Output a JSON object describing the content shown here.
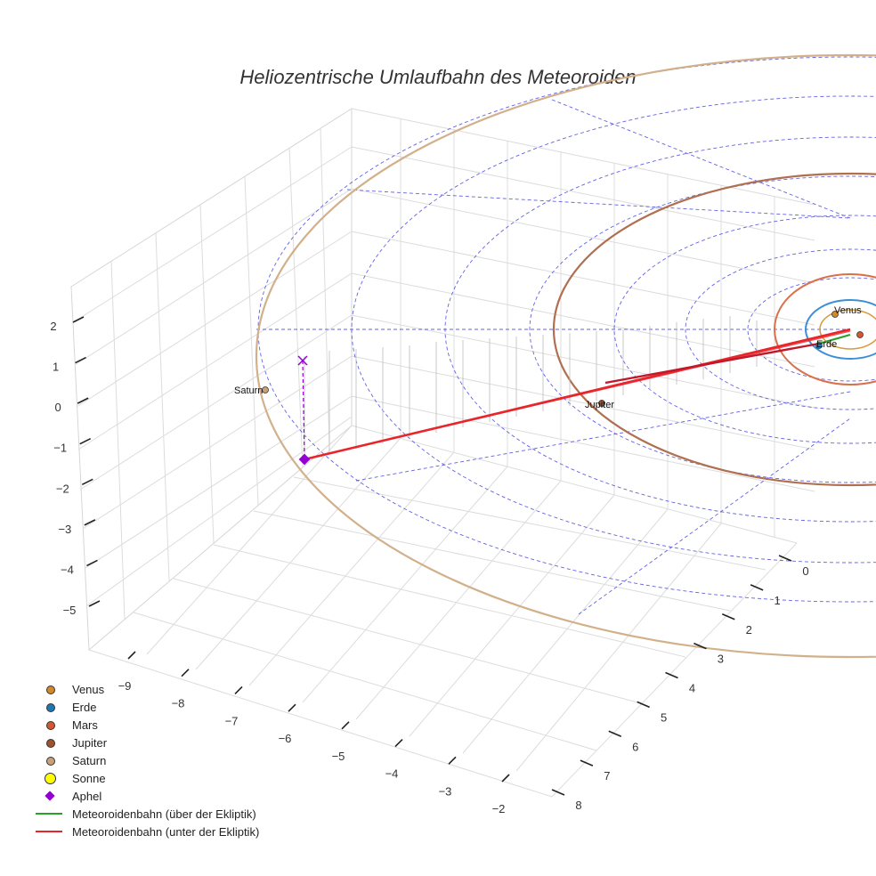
{
  "chart_data": {
    "type": "scatter3d",
    "title": "Heliozentrische Umlaufbahn des Meteoroiden",
    "axes": {
      "x": {
        "range": [
          -9.5,
          -1.5
        ],
        "ticks": [
          -9,
          -8,
          -7,
          -6,
          -5,
          -4,
          -3,
          -2
        ]
      },
      "y": {
        "range": [
          -0.5,
          8.5
        ],
        "ticks": [
          0,
          1,
          2,
          3,
          4,
          5,
          6,
          7,
          8
        ]
      },
      "z": {
        "range": [
          -5.5,
          2.5
        ],
        "ticks": [
          2,
          1,
          0,
          -1,
          -2,
          -3,
          -4,
          -5
        ]
      }
    },
    "planets": [
      {
        "name": "Venus",
        "color": "#d4882a",
        "label": "Venus"
      },
      {
        "name": "Erde",
        "color": "#1f77b4",
        "label": "Erde"
      },
      {
        "name": "Mars",
        "color": "#d3572f",
        "label": ""
      },
      {
        "name": "Jupiter",
        "color": "#a0522d",
        "label": "Jupiter"
      },
      {
        "name": "Saturn",
        "color": "#c8a07a",
        "label": "Saturn"
      }
    ],
    "orbit_colors": {
      "venus": "#d99a3a",
      "erde": "#3a8fd6",
      "mars": "#d9704a",
      "jupiter": "#b07050",
      "saturn": "#d2b08a"
    },
    "sun": {
      "name": "Sonne",
      "color": "#ffff00"
    },
    "aphel": {
      "name": "Aphel",
      "color": "#9400d3"
    },
    "meteoroid_above": {
      "name": "Meteoroidenbahn (über der Ekliptik)",
      "color": "#2ca02c"
    },
    "meteoroid_below": {
      "name": "Meteoroidenbahn (unter der Ekliptik)",
      "color": "#e8262a"
    },
    "legend": [
      {
        "label": "Venus",
        "kind": "dot",
        "color": "#d4882a"
      },
      {
        "label": "Erde",
        "kind": "dot",
        "color": "#1f77b4"
      },
      {
        "label": "Mars",
        "kind": "dot",
        "color": "#d3572f"
      },
      {
        "label": "Jupiter",
        "kind": "dot",
        "color": "#a0522d"
      },
      {
        "label": "Saturn",
        "kind": "dot",
        "color": "#c8a07a"
      },
      {
        "label": "Sonne",
        "kind": "bigdot",
        "color": "#ffff00"
      },
      {
        "label": "Aphel",
        "kind": "diamond",
        "color": "#9400d3"
      },
      {
        "label": "Meteoroidenbahn (über der Ekliptik)",
        "kind": "line",
        "color": "#2ca02c"
      },
      {
        "label": "Meteoroidenbahn (unter der Ekliptik)",
        "kind": "line",
        "color": "#e8262a"
      }
    ]
  }
}
